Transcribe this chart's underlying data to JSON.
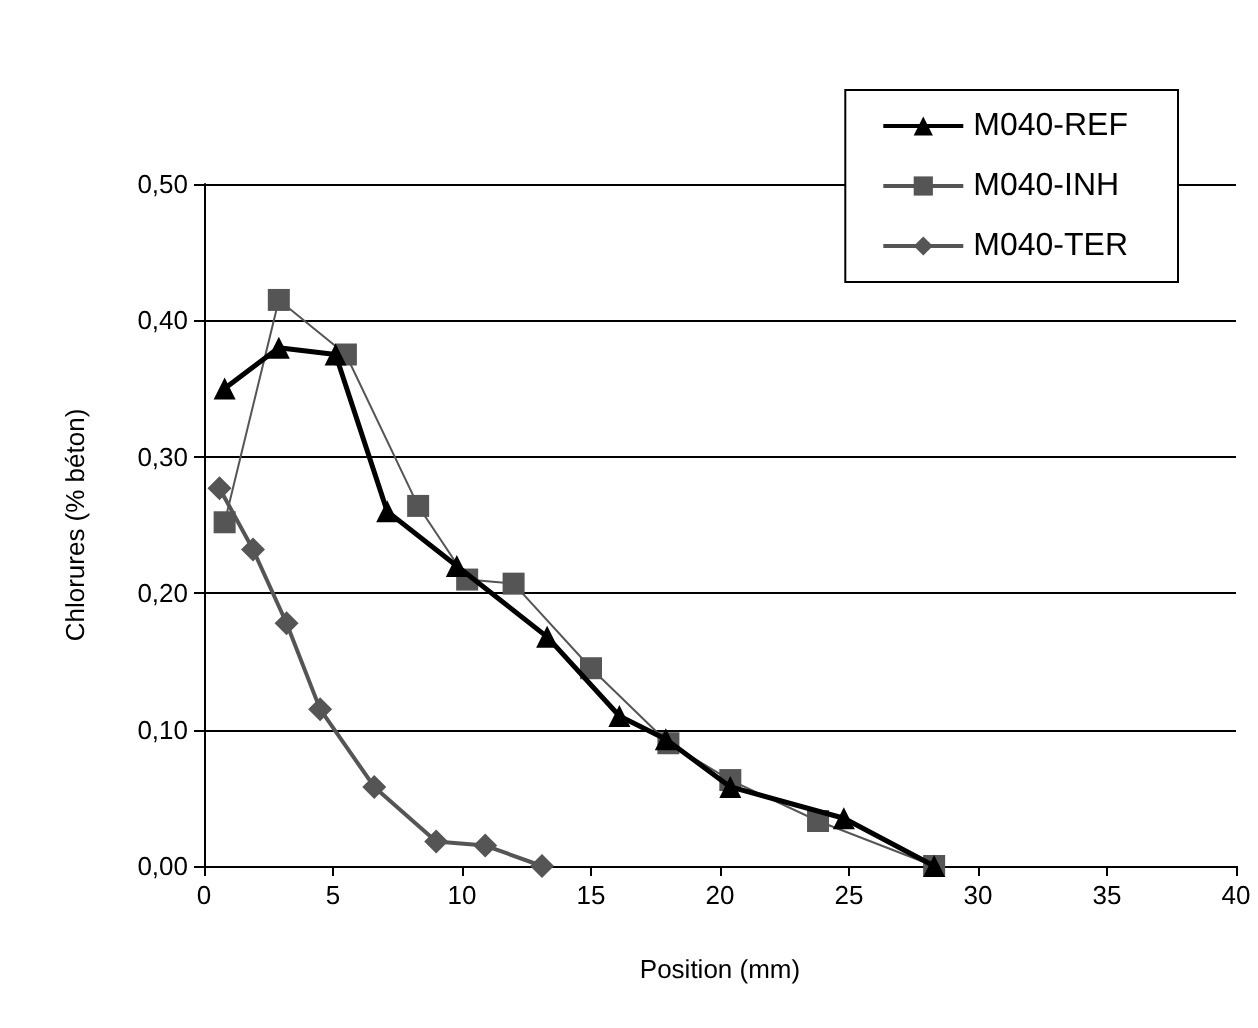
{
  "chart_data": {
    "type": "line",
    "xlabel": "Position (mm)",
    "ylabel": "Chlorures (% béton)",
    "xlim": [
      0,
      40
    ],
    "xticks": [
      0,
      5,
      10,
      15,
      20,
      25,
      30,
      35,
      40
    ],
    "ylim": [
      0,
      0.5
    ],
    "yticks": [
      {
        "value": 0,
        "label": "0,00"
      },
      {
        "value": 0.1,
        "label": "0,10"
      },
      {
        "value": 0.2,
        "label": "0,20"
      },
      {
        "value": 0.3,
        "label": "0,30"
      },
      {
        "value": 0.4,
        "label": "0,40"
      },
      {
        "value": 0.5,
        "label": "0,50"
      }
    ],
    "grid": "y",
    "legend": "top right",
    "line_style": "solid",
    "series": [
      {
        "name": "M040-REF",
        "color": "#000000",
        "marker": "triangle",
        "x": [
          0.8,
          2.9,
          5.1,
          7.1,
          9.8,
          13.3,
          16.1,
          17.9,
          20.4,
          24.8,
          28.3
        ],
        "values": [
          0.35,
          0.38,
          0.375,
          0.26,
          0.22,
          0.168,
          0.11,
          0.093,
          0.058,
          0.035,
          0
        ]
      },
      {
        "name": "M040-INH",
        "color": "#555555",
        "marker": "square",
        "x": [
          0.8,
          2.9,
          5.5,
          8.3,
          10.2,
          12.0,
          15.0,
          18.0,
          20.4,
          23.8,
          28.3
        ],
        "values": [
          0.252,
          0.415,
          0.375,
          0.264,
          0.21,
          0.207,
          0.145,
          0.09,
          0.063,
          0.033,
          0
        ]
      },
      {
        "name": "M040-TER",
        "color": "#555555",
        "marker": "diamond",
        "x": [
          0.6,
          1.9,
          3.2,
          4.5,
          6.6,
          9.0,
          10.9,
          13.1
        ],
        "values": [
          0.277,
          0.232,
          0.178,
          0.115,
          0.058,
          0.018,
          0.015,
          0
        ]
      }
    ]
  }
}
